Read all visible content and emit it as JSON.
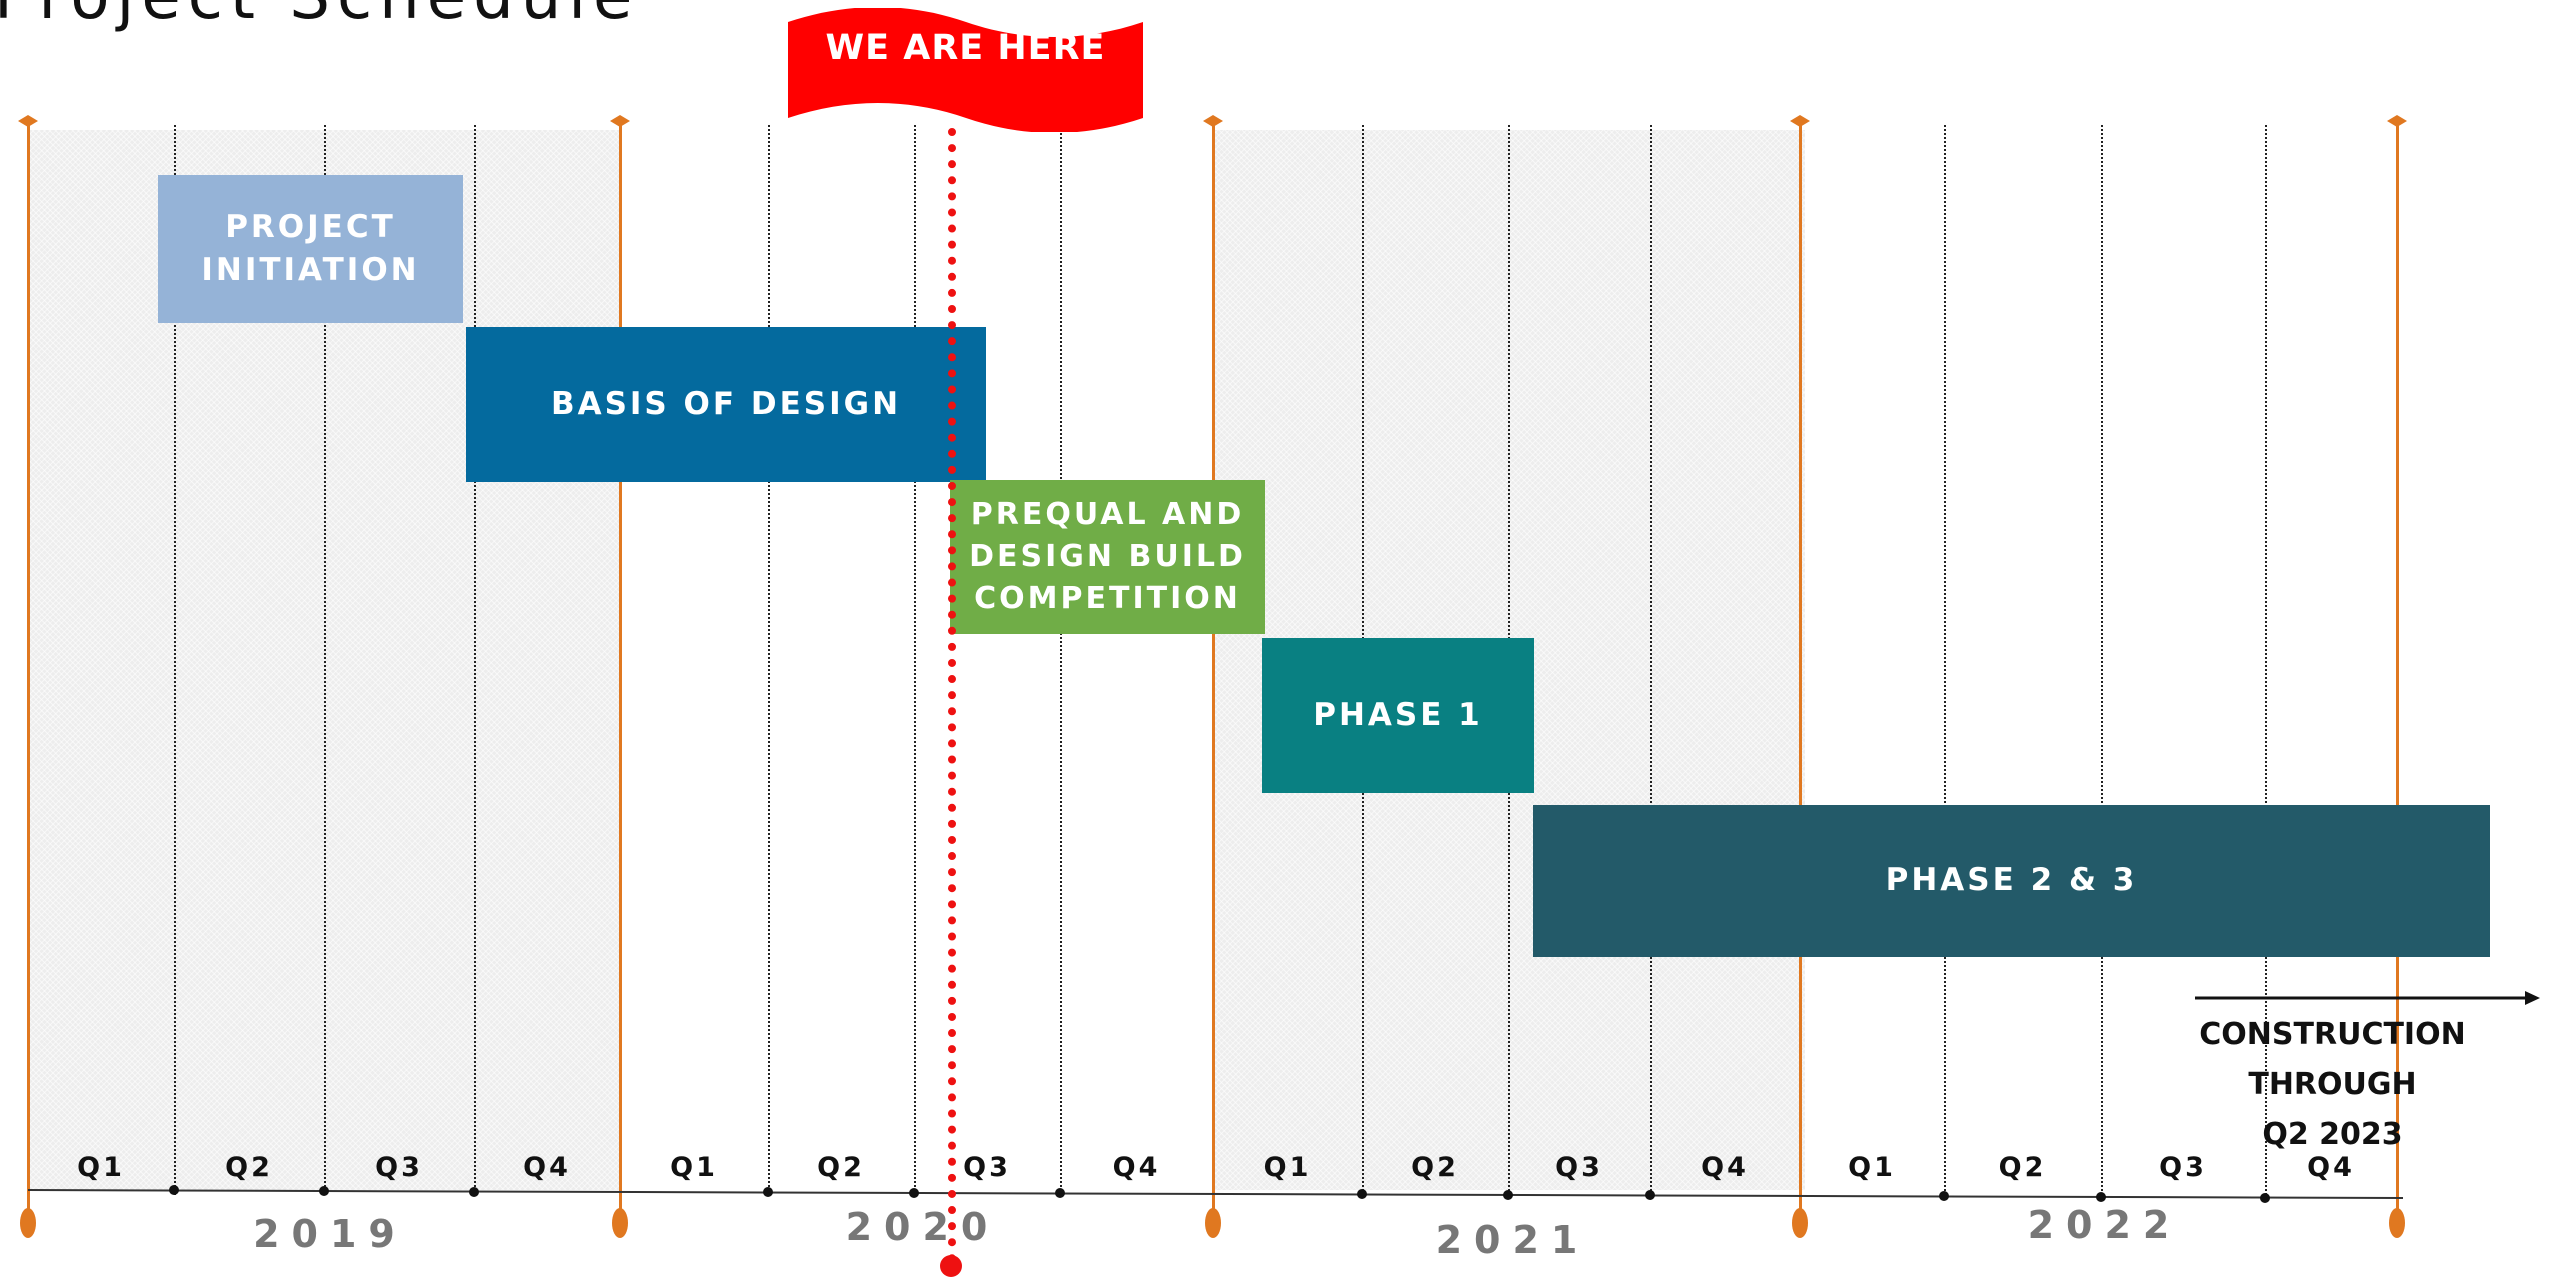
{
  "title": "Project Schedule",
  "years": [
    "2019",
    "2020",
    "2021",
    "2022"
  ],
  "quarters": [
    "Q1",
    "Q2",
    "Q3",
    "Q4"
  ],
  "phases": [
    {
      "name": "PROJECT INITIATION",
      "lines": [
        "PROJECT",
        "INITIATION"
      ],
      "color": "#95b3d7"
    },
    {
      "name": "BASIS OF DESIGN",
      "lines": [
        "BASIS OF DESIGN"
      ],
      "color": "#046a9e"
    },
    {
      "name": "PREQUAL AND DESIGN BUILD COMPETITION",
      "lines": [
        "PREQUAL AND",
        "DESIGN BUILD",
        "COMPETITION"
      ],
      "color": "#70ad47"
    },
    {
      "name": "PHASE 1",
      "lines": [
        "PHASE 1"
      ],
      "color": "#098082"
    },
    {
      "name": "PHASE 2 & 3",
      "lines": [
        "PHASE 2 & 3"
      ],
      "color": "#235a69"
    }
  ],
  "marker": {
    "label": "WE ARE HERE",
    "color": "#ff0000"
  },
  "note": {
    "lines": [
      "CONSTRUCTION THROUGH",
      "Q2 2023"
    ]
  },
  "colors": {
    "year_line": "#e07820",
    "shading": "#ededed",
    "year_text": "#777777"
  }
}
